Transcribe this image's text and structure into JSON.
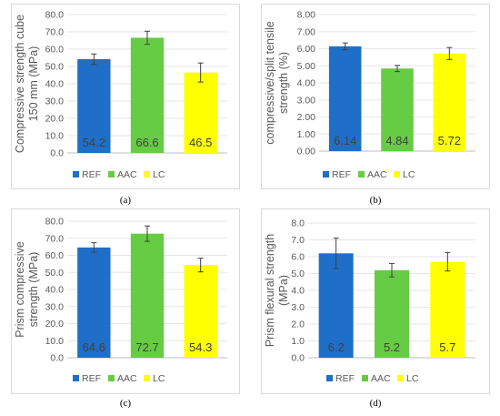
{
  "colors": {
    "REF": "#1f6fc8",
    "AAC": "#66cc44",
    "LC": "#ffff00"
  },
  "chart_data": [
    {
      "type": "bar",
      "caption": "(a)",
      "ylabel": "Compressive strength cube 150 mm (MPa)",
      "ylabel_lines": [
        "Compressive strength cube",
        "150 mm (MPa)"
      ],
      "categories": [
        "REF",
        "AAC",
        "LC"
      ],
      "values": [
        54.2,
        66.6,
        46.5
      ],
      "data_labels": [
        "54.2",
        "66.6",
        "46.5"
      ],
      "error": [
        3.0,
        3.8,
        5.5
      ],
      "ylim": [
        0,
        80
      ],
      "yticks": [
        "0.0",
        "10.0",
        "20.0",
        "30.0",
        "40.0",
        "50.0",
        "60.0",
        "70.0",
        "80.0"
      ],
      "legend": [
        "REF",
        "AAC",
        "LC"
      ],
      "legend_position": "bottom"
    },
    {
      "type": "bar",
      "caption": "(b)",
      "ylabel": "compressive/split tensile strength (%)",
      "ylabel_lines": [
        "compressive/split tensile",
        "strength (%)"
      ],
      "categories": [
        "REF",
        "AAC",
        "LC"
      ],
      "values": [
        6.14,
        4.84,
        5.72
      ],
      "data_labels": [
        "6.14",
        "4.84",
        "5.72"
      ],
      "error": [
        0.2,
        0.18,
        0.35
      ],
      "ylim": [
        0,
        8
      ],
      "yticks": [
        "0.00",
        "1.00",
        "2.00",
        "3.00",
        "4.00",
        "5.00",
        "6.00",
        "7.00",
        "8.00"
      ],
      "legend": [
        "REF",
        "AAC",
        "LC"
      ],
      "legend_position": "bottom"
    },
    {
      "type": "bar",
      "caption": "(c)",
      "ylabel": "Prism compressive strength (MPa)",
      "ylabel_lines": [
        "Prism compressive",
        "strength (MPa)"
      ],
      "categories": [
        "REF",
        "AAC",
        "LC"
      ],
      "values": [
        64.6,
        72.7,
        54.3
      ],
      "data_labels": [
        "64.6",
        "72.7",
        "54.3"
      ],
      "error": [
        2.8,
        4.5,
        4.0
      ],
      "ylim": [
        0,
        80
      ],
      "yticks": [
        "0.0",
        "10.0",
        "20.0",
        "30.0",
        "40.0",
        "50.0",
        "60.0",
        "70.0",
        "80.0"
      ],
      "legend": [
        "REF",
        "AAC",
        "LC"
      ],
      "legend_position": "bottom"
    },
    {
      "type": "bar",
      "caption": "(d)",
      "ylabel": "Prism flexural strength (MPa)",
      "ylabel_lines": [
        "Prism flexural strength",
        "(MPa)"
      ],
      "categories": [
        "REF",
        "AAC",
        "LC"
      ],
      "values": [
        6.2,
        5.2,
        5.7
      ],
      "data_labels": [
        "6.2",
        "5.2",
        "5.7"
      ],
      "error": [
        0.9,
        0.4,
        0.55
      ],
      "ylim": [
        0,
        8
      ],
      "yticks": [
        "0.0",
        "1.0",
        "2.0",
        "3.0",
        "4.0",
        "5.0",
        "6.0",
        "7.0",
        "8.0"
      ],
      "legend": [
        "REF",
        "AAC",
        "LC"
      ],
      "legend_position": "bottom"
    }
  ]
}
